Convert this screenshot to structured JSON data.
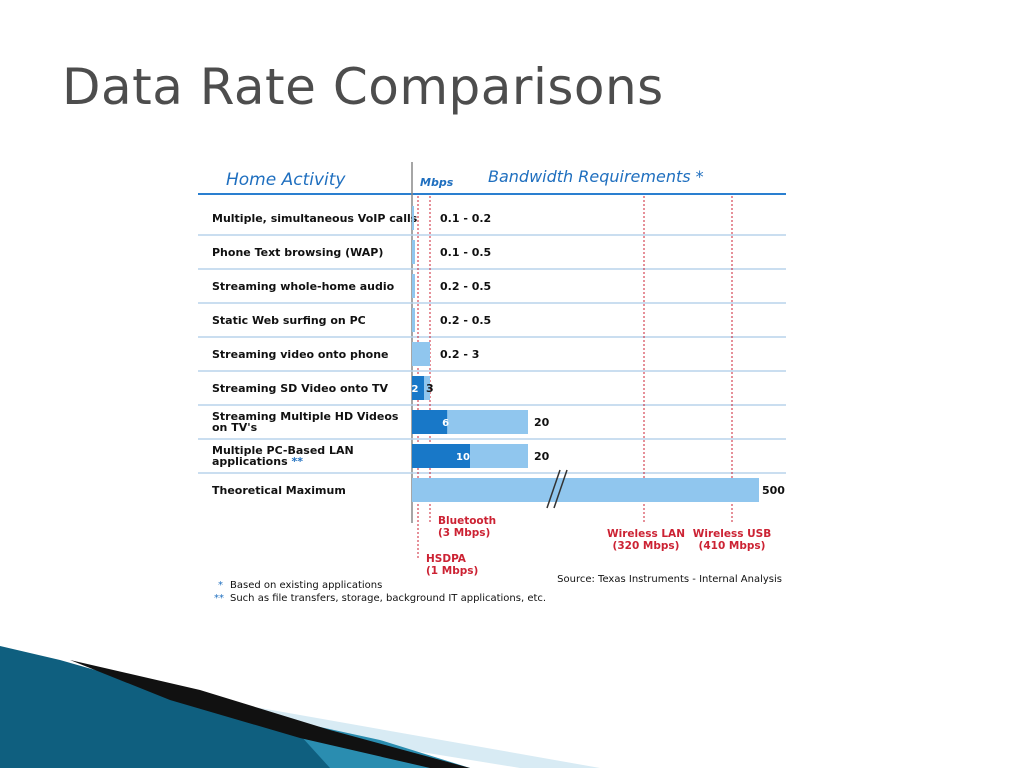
{
  "slide": {
    "title": "Data Rate Comparisons"
  },
  "chart_data": {
    "type": "bar",
    "title": "Bandwidth Requirements *",
    "row_header": "Home Activity",
    "unit_label": "Mbps",
    "categories": [
      "Multiple, simultaneous VoIP calls",
      "Phone Text browsing (WAP)",
      "Streaming whole-home audio",
      "Static Web surfing on PC",
      "Streaming video onto phone",
      "Streaming SD Video onto TV",
      "Streaming Multiple HD Videos on TV's",
      "Multiple PC-Based LAN applications **",
      "Theoretical Maximum"
    ],
    "category_lines": [
      [
        "Multiple, simultaneous VoIP calls"
      ],
      [
        "Phone Text browsing (WAP)"
      ],
      [
        "Streaming whole-home audio"
      ],
      [
        "Static Web surfing on PC"
      ],
      [
        "Streaming video onto phone"
      ],
      [
        "Streaming SD Video onto TV"
      ],
      [
        "Streaming Multiple HD Videos",
        "on TV's"
      ],
      [
        "Multiple PC-Based LAN",
        "applications"
      ],
      [
        "Theoretical Maximum"
      ]
    ],
    "category_marks": [
      "",
      "",
      "",
      "",
      "",
      "",
      "",
      "**",
      ""
    ],
    "ranges": [
      {
        "min": 0.1,
        "max": 0.2,
        "label": "0.1 - 0.2"
      },
      {
        "min": 0.1,
        "max": 0.5,
        "label": "0.1 - 0.5"
      },
      {
        "min": 0.2,
        "max": 0.5,
        "label": "0.2 - 0.5"
      },
      {
        "min": 0.2,
        "max": 0.5,
        "label": "0.2 - 0.5"
      },
      {
        "min": 0.2,
        "max": 3,
        "label": "0.2 - 3"
      },
      {
        "min": 2,
        "max": 3,
        "label": "3",
        "inner_label": "2"
      },
      {
        "min": 6,
        "max": 20,
        "label": "20",
        "inner_label": "6"
      },
      {
        "min": 10,
        "max": 20,
        "label": "20",
        "inner_label": "10"
      },
      {
        "min": 500,
        "max": 500,
        "label": "500",
        "axis_break": true
      }
    ],
    "reference_lines": [
      {
        "value": 1,
        "lines": [
          "HSDPA",
          "(1 Mbps)"
        ]
      },
      {
        "value": 3,
        "lines": [
          "Bluetooth",
          "(3 Mbps)"
        ]
      },
      {
        "value": 320,
        "lines": [
          "Wireless LAN",
          "(320 Mbps)"
        ]
      },
      {
        "value": 410,
        "lines": [
          "Wireless USB",
          "(410 Mbps)"
        ]
      }
    ],
    "footnotes": [
      {
        "mark": "*",
        "text": "Based on existing applications"
      },
      {
        "mark": "**",
        "text": "Such as file transfers, storage, background IT applications, etc."
      }
    ],
    "source": "Source: Texas Instruments - Internal Analysis",
    "colors": {
      "header_text": "#1f6fbf",
      "rule": "#2a7fd0",
      "row_line": "#b8d3ec",
      "bar_light": "#90c6ee",
      "bar_dark": "#1878c8",
      "reference": "#cc2233",
      "text": "#111111"
    }
  },
  "decor": {
    "colors": {
      "swoosh_dark": "#0f5f7f",
      "swoosh_mid": "#2a8db0",
      "swoosh_light": "#d8ebf4",
      "swoosh_black": "#111111"
    }
  }
}
